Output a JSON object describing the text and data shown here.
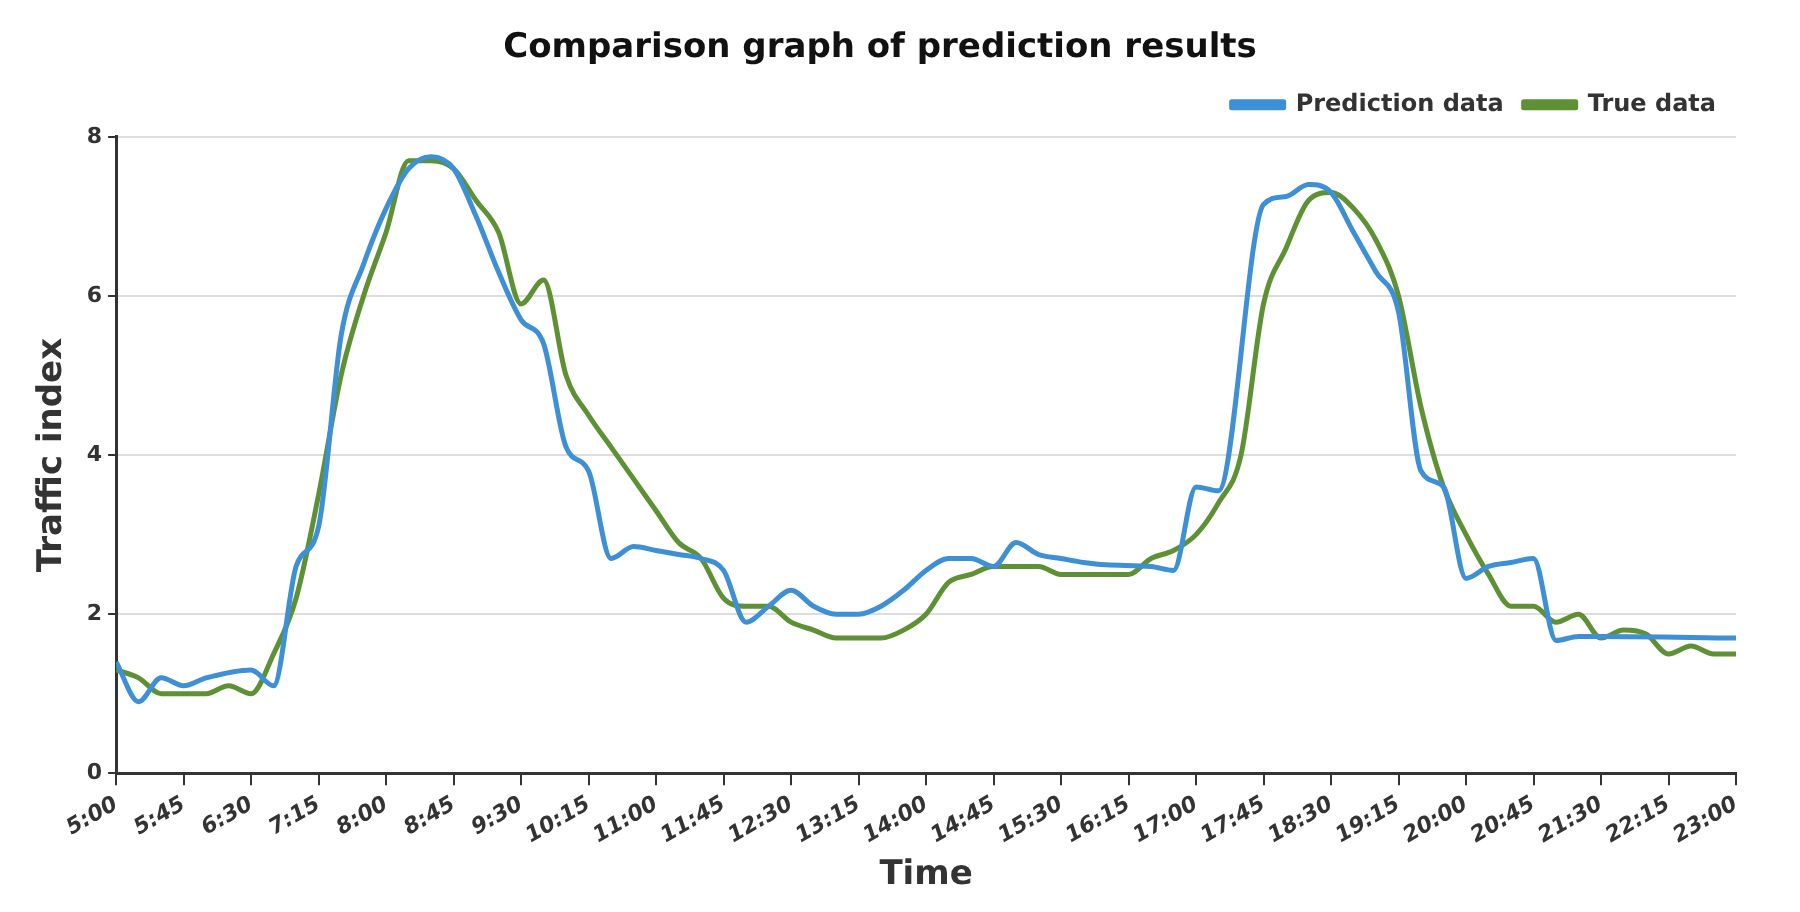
{
  "chart_data": {
    "type": "line",
    "title": "Comparison graph of prediction results",
    "xlabel": "Time",
    "ylabel": "Traffic index",
    "legend": "top right",
    "grid": "y",
    "marker": "none",
    "line_style": "solid",
    "xlim": [
      5,
      23
    ],
    "ylim": [
      0,
      8
    ],
    "yticks": [
      0,
      2,
      4,
      6,
      8
    ],
    "xticks": [
      {
        "value": 5,
        "label": "5:00"
      },
      {
        "value": 5.75,
        "label": "5:45"
      },
      {
        "value": 6.5,
        "label": "6:30"
      },
      {
        "value": 7.25,
        "label": "7:15"
      },
      {
        "value": 8,
        "label": "8:00"
      },
      {
        "value": 8.75,
        "label": "8:45"
      },
      {
        "value": 9.5,
        "label": "9:30"
      },
      {
        "value": 10.25,
        "label": "10:15"
      },
      {
        "value": 11,
        "label": "11:00"
      },
      {
        "value": 11.75,
        "label": "11:45"
      },
      {
        "value": 12.5,
        "label": "12:30"
      },
      {
        "value": 13.25,
        "label": "13:15"
      },
      {
        "value": 14,
        "label": "14:00"
      },
      {
        "value": 14.75,
        "label": "14:45"
      },
      {
        "value": 15.5,
        "label": "15:30"
      },
      {
        "value": 16.25,
        "label": "16:15"
      },
      {
        "value": 17,
        "label": "17:00"
      },
      {
        "value": 17.75,
        "label": "17:45"
      },
      {
        "value": 18.5,
        "label": "18:30"
      },
      {
        "value": 19.25,
        "label": "19:15"
      },
      {
        "value": 20,
        "label": "20:00"
      },
      {
        "value": 20.75,
        "label": "20:45"
      },
      {
        "value": 21.5,
        "label": "21:30"
      },
      {
        "value": 22.25,
        "label": "22:15"
      },
      {
        "value": 23,
        "label": "23:00"
      }
    ],
    "series": [
      {
        "name": "Prediction data",
        "color": "#3d8fd6",
        "x": [
          5,
          5.25,
          5.5,
          5.75,
          6,
          6.5,
          6.75,
          7,
          7.25,
          7.5,
          7.75,
          8,
          8.25,
          8.5,
          8.75,
          9,
          9.25,
          9.5,
          9.75,
          10,
          10.25,
          10.5,
          10.75,
          11,
          11.25,
          11.5,
          11.75,
          12,
          12.25,
          12.5,
          12.75,
          13,
          13.25,
          13.5,
          13.75,
          14,
          14.25,
          14.5,
          14.75,
          15,
          15.25,
          15.5,
          15.75,
          16,
          16.5,
          16.75,
          17,
          17.25,
          17.75,
          18,
          18.25,
          18.5,
          18.75,
          19,
          19.25,
          19.5,
          19.75,
          20,
          20.25,
          20.5,
          20.75,
          21,
          21.25,
          21.5,
          23
        ],
        "values": [
          1.4,
          0.9,
          1.2,
          1.1,
          1.2,
          1.3,
          1.1,
          2.6,
          3.1,
          5.5,
          6.4,
          7.1,
          7.6,
          7.75,
          7.6,
          7.0,
          6.3,
          5.7,
          5.4,
          4.1,
          3.8,
          2.7,
          2.85,
          2.8,
          2.75,
          2.7,
          2.55,
          1.9,
          2.1,
          2.3,
          2.1,
          2.0,
          2.0,
          2.1,
          2.3,
          2.55,
          2.7,
          2.7,
          2.6,
          2.9,
          2.75,
          2.7,
          2.65,
          2.62,
          2.6,
          2.55,
          3.6,
          3.55,
          7.15,
          7.25,
          7.4,
          7.3,
          6.8,
          6.3,
          5.8,
          3.8,
          3.6,
          2.45,
          2.6,
          2.65,
          2.7,
          1.67,
          1.72,
          1.72,
          1.7
        ]
      },
      {
        "name": "True data",
        "color": "#5d9133",
        "x": [
          5,
          5.25,
          5.5,
          6,
          6.25,
          6.5,
          6.75,
          7,
          7.25,
          7.5,
          7.75,
          8,
          8.25,
          8.5,
          8.75,
          9,
          9.25,
          9.5,
          9.75,
          10,
          10.25,
          10.5,
          10.75,
          11,
          11.25,
          11.5,
          11.75,
          12,
          12.25,
          12.5,
          12.75,
          13,
          13.5,
          13.75,
          14,
          14.25,
          14.5,
          14.75,
          15.25,
          15.5,
          16,
          16.25,
          16.5,
          16.75,
          17,
          17.25,
          17.5,
          17.75,
          18,
          18.25,
          18.5,
          18.75,
          19,
          19.25,
          19.5,
          19.75,
          20,
          20.25,
          20.5,
          20.75,
          21,
          21.25,
          21.5,
          21.75,
          22,
          22.25,
          22.5,
          22.75,
          23
        ],
        "values": [
          1.3,
          1.2,
          1.0,
          1.0,
          1.1,
          1.0,
          1.5,
          2.2,
          3.5,
          5.0,
          6.0,
          6.8,
          7.7,
          7.7,
          7.6,
          7.2,
          6.8,
          5.9,
          6.2,
          5.0,
          4.5,
          4.1,
          3.7,
          3.3,
          2.9,
          2.7,
          2.2,
          2.1,
          2.1,
          1.9,
          1.8,
          1.7,
          1.7,
          1.8,
          2.0,
          2.4,
          2.5,
          2.6,
          2.6,
          2.5,
          2.5,
          2.5,
          2.7,
          2.8,
          3.0,
          3.4,
          4.0,
          5.9,
          6.6,
          7.2,
          7.3,
          7.1,
          6.7,
          6.0,
          4.6,
          3.6,
          3.0,
          2.5,
          2.1,
          2.1,
          1.9,
          2.0,
          1.7,
          1.8,
          1.75,
          1.5,
          1.6,
          1.5,
          1.5
        ]
      }
    ]
  }
}
